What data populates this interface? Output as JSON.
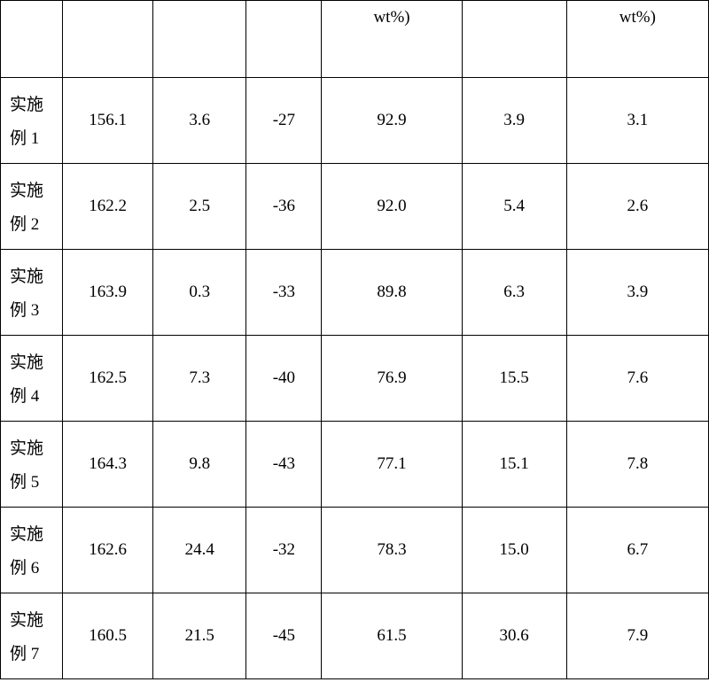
{
  "table": {
    "background_color": "#ffffff",
    "border_color": "#000000",
    "text_color": "#000000",
    "font_family": "SimSun",
    "header_fontsize": 19,
    "cell_fontsize": 19,
    "headers": {
      "col1": "",
      "col2": "",
      "col3": "",
      "col4": "",
      "col5": "wt%)",
      "col6": "",
      "col7": "wt%)"
    },
    "rows": [
      {
        "label_line1": "实施",
        "label_line2": "例 1",
        "v1": "156.1",
        "v2": "3.6",
        "v3": "-27",
        "v4": "92.9",
        "v5": "3.9",
        "v6": "3.1"
      },
      {
        "label_line1": "实施",
        "label_line2": "例 2",
        "v1": "162.2",
        "v2": "2.5",
        "v3": "-36",
        "v4": "92.0",
        "v5": "5.4",
        "v6": "2.6"
      },
      {
        "label_line1": "实施",
        "label_line2": "例 3",
        "v1": "163.9",
        "v2": "0.3",
        "v3": "-33",
        "v4": "89.8",
        "v5": "6.3",
        "v6": "3.9"
      },
      {
        "label_line1": "实施",
        "label_line2": "例 4",
        "v1": "162.5",
        "v2": "7.3",
        "v3": "-40",
        "v4": "76.9",
        "v5": "15.5",
        "v6": "7.6"
      },
      {
        "label_line1": "实施",
        "label_line2": "例 5",
        "v1": "164.3",
        "v2": "9.8",
        "v3": "-43",
        "v4": "77.1",
        "v5": "15.1",
        "v6": "7.8"
      },
      {
        "label_line1": "实施",
        "label_line2": "例 6",
        "v1": "162.6",
        "v2": "24.4",
        "v3": "-32",
        "v4": "78.3",
        "v5": "15.0",
        "v6": "6.7"
      },
      {
        "label_line1": "实施",
        "label_line2": "例 7",
        "v1": "160.5",
        "v2": "21.5",
        "v3": "-45",
        "v4": "61.5",
        "v5": "30.6",
        "v6": "7.9"
      }
    ]
  }
}
